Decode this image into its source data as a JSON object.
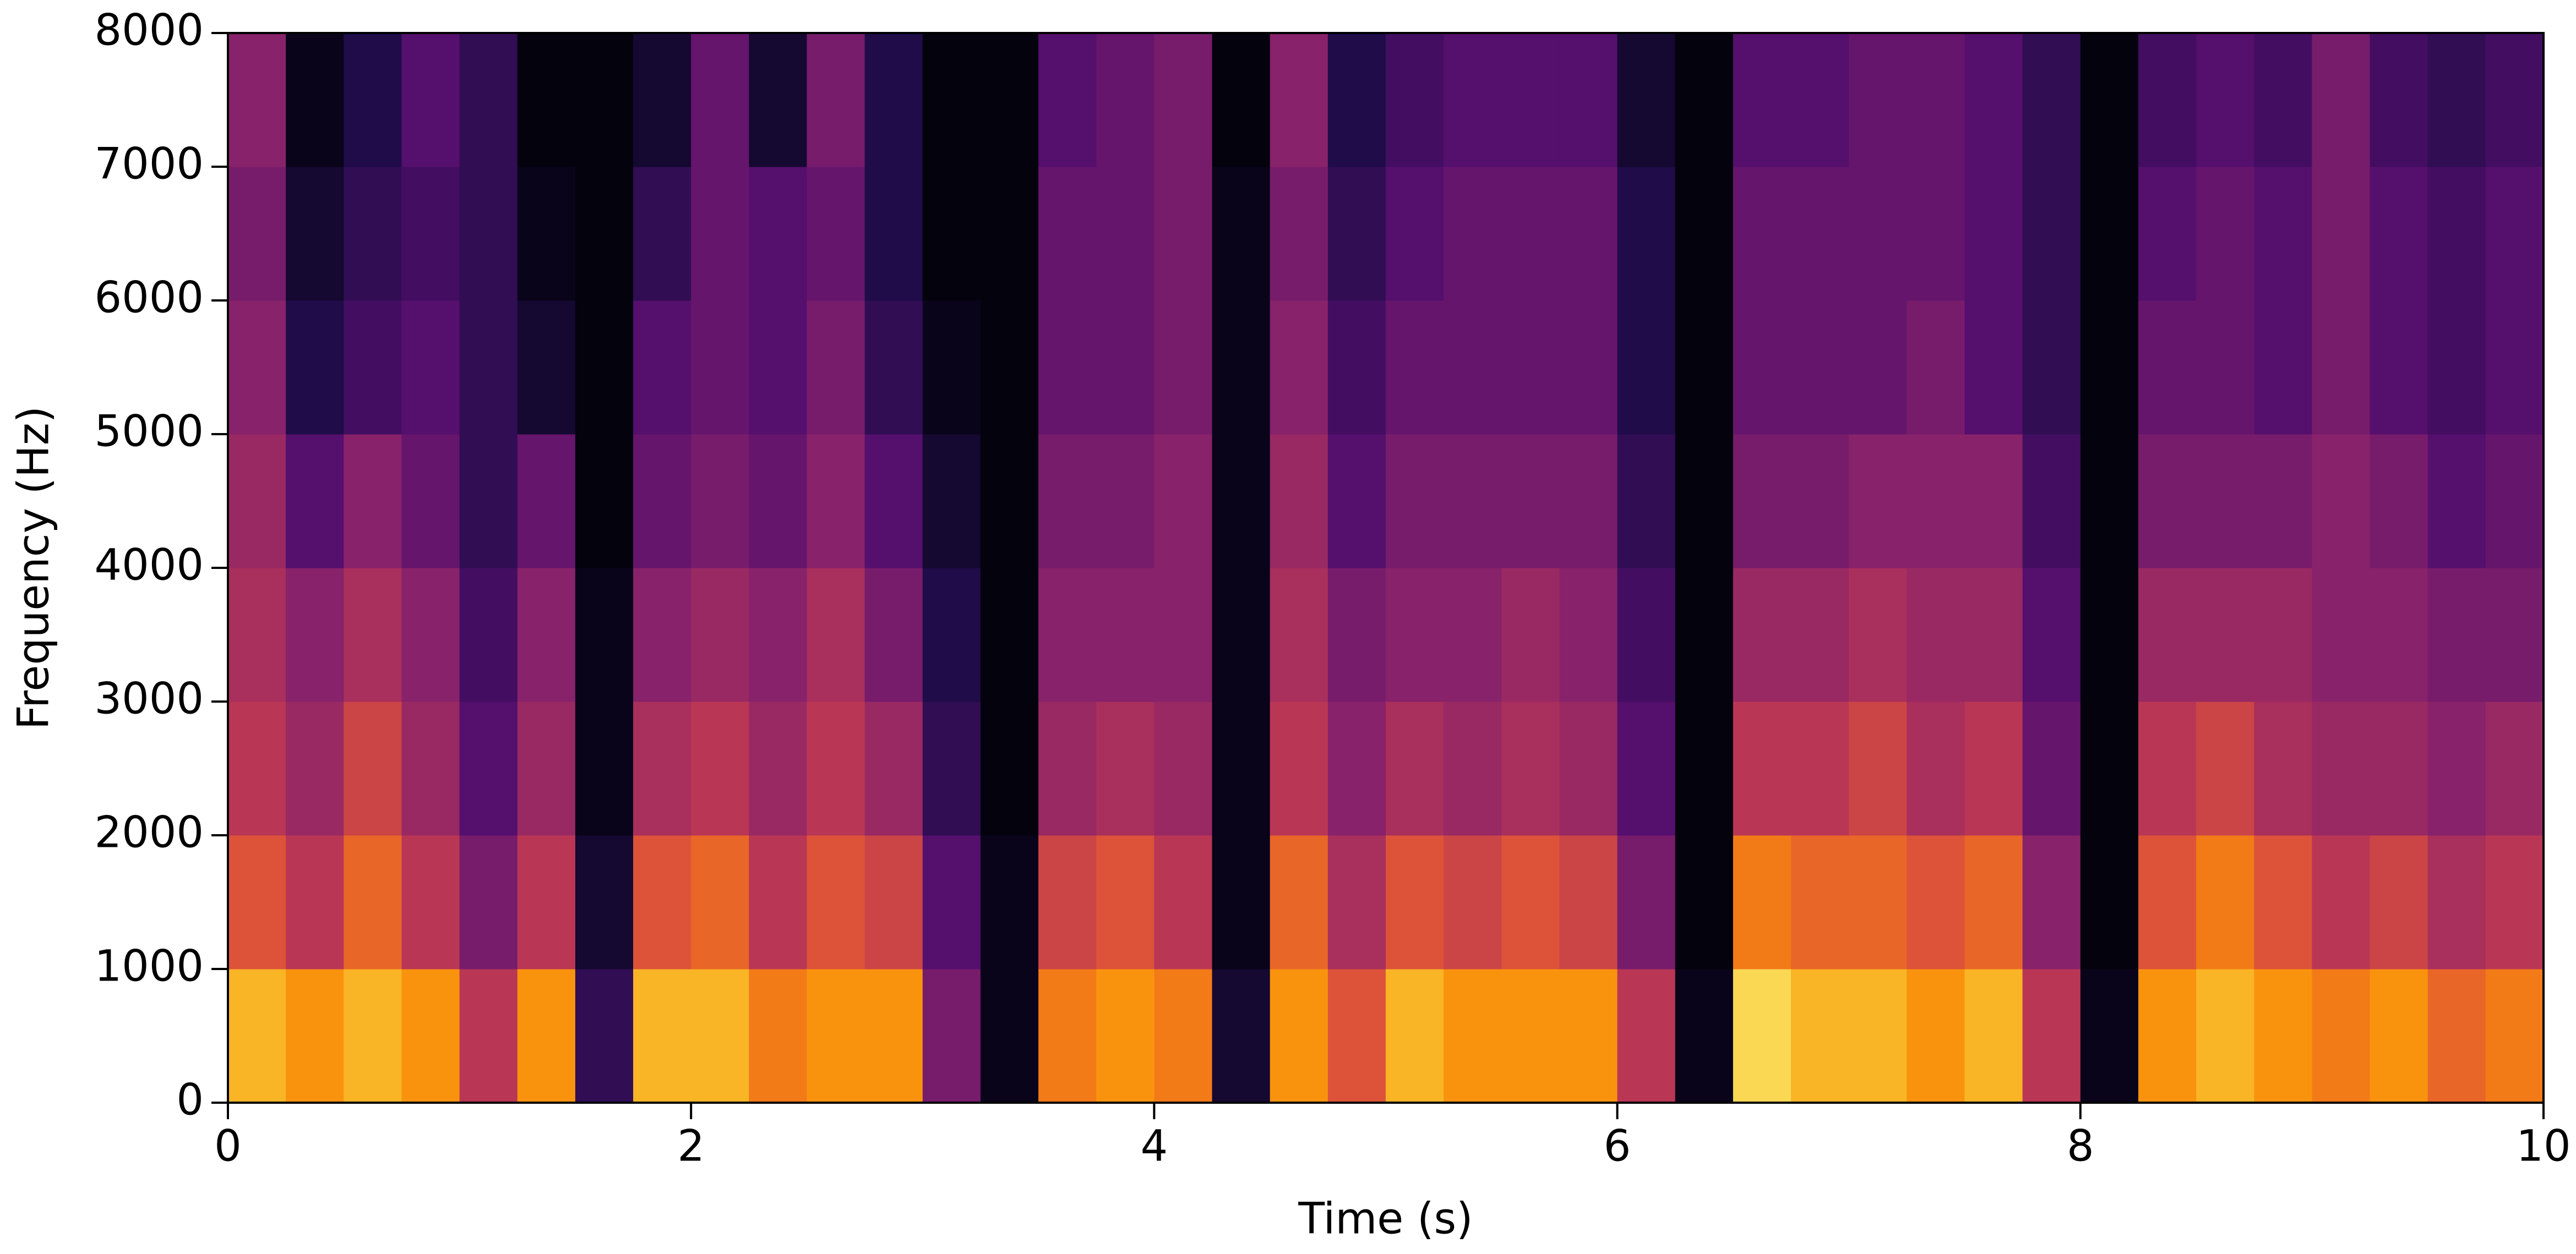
{
  "chart_data": {
    "type": "spectrogram",
    "xlabel": "Time (s)",
    "ylabel": "Frequency (Hz)",
    "xlim": [
      0,
      10
    ],
    "ylim": [
      0,
      8000
    ],
    "xticks": [
      0,
      2,
      4,
      6,
      8,
      10
    ],
    "yticks": [
      0,
      1000,
      2000,
      3000,
      4000,
      5000,
      6000,
      7000,
      8000
    ],
    "colormap": "inferno",
    "xbins": [
      0,
      0.25,
      0.5,
      0.75,
      1,
      1.25,
      1.5,
      1.75,
      2,
      2.25,
      2.5,
      2.75,
      3,
      3.25,
      3.5,
      3.75,
      4,
      4.25,
      4.5,
      4.75,
      5,
      5.25,
      5.5,
      5.75,
      6,
      6.25,
      6.5,
      6.75,
      7,
      7.25,
      7.5,
      7.75,
      8,
      8.25,
      8.5,
      8.75,
      9,
      9.25,
      9.5,
      9.75,
      10
    ],
    "ybins": [
      0,
      1000,
      2000,
      3000,
      4000,
      5000,
      6000,
      7000,
      8000
    ],
    "values": [
      [
        0.9,
        0.85,
        0.9,
        0.85,
        0.6,
        0.85,
        0.2,
        0.9,
        0.9,
        0.8,
        0.85,
        0.85,
        0.4,
        0.05,
        0.8,
        0.85,
        0.8,
        0.1,
        0.85,
        0.7,
        0.9,
        0.85,
        0.85,
        0.85,
        0.6,
        0.05,
        0.95,
        0.9,
        0.9,
        0.85,
        0.9,
        0.6,
        0.05,
        0.85,
        0.9,
        0.85,
        0.8,
        0.85,
        0.75,
        0.8
      ],
      [
        0.7,
        0.6,
        0.75,
        0.6,
        0.4,
        0.6,
        0.1,
        0.7,
        0.75,
        0.6,
        0.7,
        0.65,
        0.3,
        0.05,
        0.65,
        0.7,
        0.6,
        0.05,
        0.75,
        0.55,
        0.7,
        0.65,
        0.7,
        0.65,
        0.4,
        0.02,
        0.8,
        0.75,
        0.75,
        0.7,
        0.75,
        0.45,
        0.02,
        0.7,
        0.8,
        0.7,
        0.6,
        0.65,
        0.55,
        0.6
      ],
      [
        0.6,
        0.5,
        0.65,
        0.5,
        0.3,
        0.5,
        0.05,
        0.55,
        0.6,
        0.5,
        0.6,
        0.5,
        0.2,
        0.02,
        0.5,
        0.55,
        0.5,
        0.05,
        0.6,
        0.45,
        0.55,
        0.5,
        0.55,
        0.5,
        0.3,
        0.02,
        0.6,
        0.6,
        0.65,
        0.55,
        0.6,
        0.35,
        0.02,
        0.6,
        0.65,
        0.55,
        0.5,
        0.5,
        0.45,
        0.5
      ],
      [
        0.55,
        0.45,
        0.55,
        0.45,
        0.25,
        0.45,
        0.05,
        0.45,
        0.5,
        0.45,
        0.55,
        0.4,
        0.15,
        0.02,
        0.45,
        0.45,
        0.45,
        0.05,
        0.55,
        0.4,
        0.45,
        0.45,
        0.5,
        0.45,
        0.25,
        0.02,
        0.5,
        0.5,
        0.55,
        0.5,
        0.5,
        0.3,
        0.02,
        0.5,
        0.5,
        0.5,
        0.45,
        0.45,
        0.4,
        0.4
      ],
      [
        0.5,
        0.3,
        0.45,
        0.35,
        0.2,
        0.35,
        0.02,
        0.35,
        0.4,
        0.35,
        0.45,
        0.3,
        0.1,
        0.02,
        0.4,
        0.4,
        0.45,
        0.05,
        0.5,
        0.3,
        0.4,
        0.4,
        0.4,
        0.4,
        0.2,
        0.02,
        0.4,
        0.4,
        0.45,
        0.45,
        0.45,
        0.25,
        0.02,
        0.4,
        0.4,
        0.4,
        0.45,
        0.4,
        0.3,
        0.35
      ],
      [
        0.45,
        0.15,
        0.25,
        0.3,
        0.2,
        0.1,
        0.02,
        0.3,
        0.35,
        0.3,
        0.4,
        0.2,
        0.05,
        0.02,
        0.35,
        0.35,
        0.4,
        0.05,
        0.45,
        0.25,
        0.35,
        0.35,
        0.35,
        0.35,
        0.15,
        0.02,
        0.35,
        0.35,
        0.35,
        0.4,
        0.3,
        0.2,
        0.02,
        0.35,
        0.35,
        0.3,
        0.4,
        0.3,
        0.25,
        0.3
      ],
      [
        0.4,
        0.1,
        0.2,
        0.25,
        0.2,
        0.05,
        0.02,
        0.2,
        0.35,
        0.3,
        0.35,
        0.15,
        0.02,
        0.02,
        0.35,
        0.35,
        0.4,
        0.05,
        0.4,
        0.2,
        0.3,
        0.35,
        0.35,
        0.35,
        0.15,
        0.02,
        0.35,
        0.35,
        0.35,
        0.35,
        0.3,
        0.2,
        0.02,
        0.3,
        0.35,
        0.3,
        0.4,
        0.3,
        0.25,
        0.3
      ],
      [
        0.45,
        0.05,
        0.15,
        0.3,
        0.2,
        0.02,
        0.02,
        0.1,
        0.35,
        0.1,
        0.4,
        0.15,
        0.02,
        0.02,
        0.3,
        0.35,
        0.4,
        0.02,
        0.45,
        0.15,
        0.25,
        0.3,
        0.3,
        0.3,
        0.1,
        0.02,
        0.3,
        0.3,
        0.35,
        0.35,
        0.3,
        0.2,
        0.02,
        0.25,
        0.3,
        0.25,
        0.4,
        0.25,
        0.2,
        0.25
      ]
    ]
  }
}
